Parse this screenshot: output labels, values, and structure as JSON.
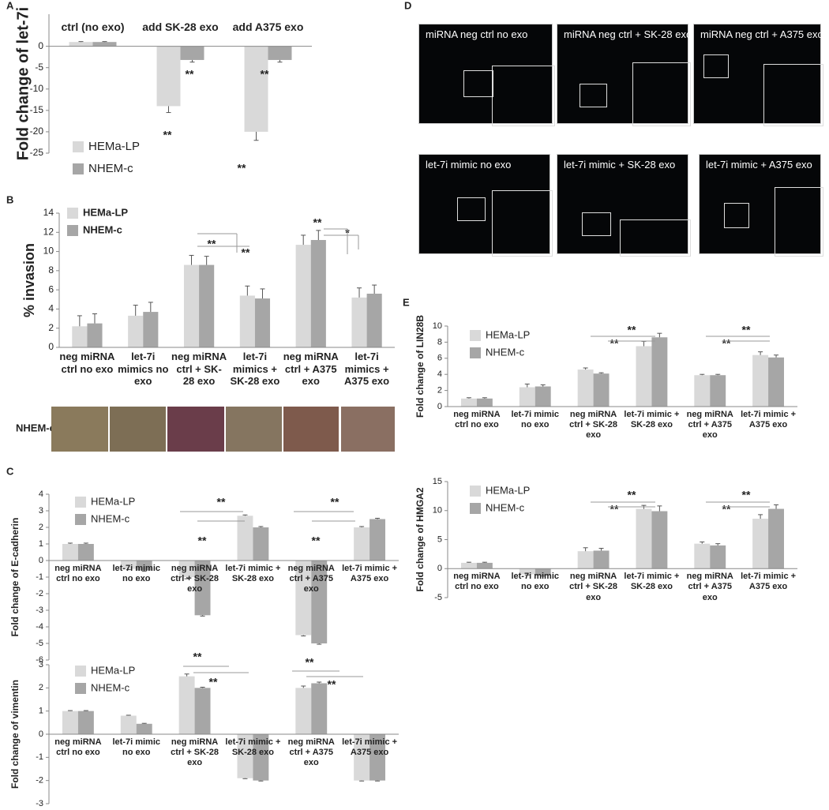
{
  "chart_data": [
    {
      "type": "bar",
      "panel": "A",
      "y_label": "Fold change of let-7i",
      "categories": [
        "ctrl (no exo)",
        "add SK-28 exo",
        "add A375 exo"
      ],
      "series": [
        {
          "name": "HEMa-LP",
          "color": "#d9d9d9",
          "values": [
            1,
            -14,
            -20
          ],
          "errors": [
            0.1,
            1.5,
            2
          ]
        },
        {
          "name": "NHEM-c",
          "color": "#a6a6a6",
          "values": [
            1,
            -3.2,
            -3.2
          ],
          "errors": [
            0.1,
            0.5,
            0.5
          ]
        }
      ],
      "ylim": [
        -25,
        7.5
      ],
      "yticks": [
        0,
        -5,
        -10,
        -15,
        -20,
        -25
      ],
      "legend": "lower left",
      "annotations": [
        "**",
        "**",
        "**",
        "**"
      ]
    },
    {
      "type": "bar",
      "panel": "B",
      "y_label": "% invasion",
      "categories": [
        "neg miRNA ctrl no exo",
        "let-7i mimics no exo",
        "neg miRNA ctrl + SK-28 exo",
        "let-7i mimics + SK-28 exo",
        "neg miRNA ctrl + A375 exo",
        "let-7i mimics + A375 exo"
      ],
      "series": [
        {
          "name": "HEMa-LP",
          "color": "#d9d9d9",
          "values": [
            2.2,
            3.3,
            8.6,
            5.4,
            10.7,
            5.2
          ],
          "errors": [
            1.1,
            1.1,
            1.0,
            1.0,
            1.0,
            1.0
          ]
        },
        {
          "name": "NHEM-c",
          "color": "#a6a6a6",
          "values": [
            2.5,
            3.7,
            8.6,
            5.1,
            11.2,
            5.6
          ],
          "errors": [
            1.0,
            1.0,
            0.9,
            1.0,
            1.0,
            0.9
          ]
        }
      ],
      "ylim": [
        0,
        14
      ],
      "yticks": [
        0,
        2,
        4,
        6,
        8,
        10,
        12,
        14
      ],
      "legend": "upper left",
      "annotations": [
        "**",
        "**",
        "**",
        "*"
      ],
      "image_row_label": "NHEM-c"
    },
    {
      "type": "bar",
      "panel": "C",
      "y_label": "Fold change of E-cadherin",
      "categories": [
        "neg miRNA ctrl no exo",
        "let-7i mimic no exo",
        "neg miRNA ctrl + SK-28 exo",
        "let-7i mimic + SK-28 exo",
        "neg miRNA ctrl + A375 exo",
        "let-7i mimic + A375 exo"
      ],
      "series": [
        {
          "name": "HEMa-LP",
          "color": "#d9d9d9",
          "values": [
            1,
            -0.5,
            -1,
            2.7,
            -4.5,
            2
          ],
          "errors": [
            0.05,
            0.05,
            0.1,
            0.05,
            0.05,
            0.05
          ]
        },
        {
          "name": "NHEM-c",
          "color": "#a6a6a6",
          "values": [
            1,
            -0.6,
            -3.3,
            2,
            -5,
            2.5
          ],
          "errors": [
            0.05,
            0.05,
            0.05,
            0.05,
            0.05,
            0.05
          ]
        }
      ],
      "ylim": [
        -6,
        4
      ],
      "yticks": [
        -6,
        -5,
        -4,
        -3,
        -2,
        -1,
        0,
        1,
        2,
        3,
        4
      ],
      "legend": "upper left",
      "annotations": [
        "**",
        "**",
        "**",
        "**"
      ]
    },
    {
      "type": "bar",
      "y_label": "Fold change of vimentin",
      "categories": [
        "neg miRNA ctrl no exo",
        "let-7i mimic no exo",
        "neg miRNA ctrl + SK-28 exo",
        "let-7i mimic + SK-28 exo",
        "neg miRNA ctrl + A375 exo",
        "let-7i mimic + A375 exo"
      ],
      "series": [
        {
          "name": "HEMa-LP",
          "color": "#d9d9d9",
          "values": [
            1,
            0.8,
            2.5,
            -1.9,
            2,
            -2
          ],
          "errors": [
            0.02,
            0.02,
            0.1,
            0.02,
            0.08,
            0.02
          ]
        },
        {
          "name": "NHEM-c",
          "color": "#a6a6a6",
          "values": [
            1,
            0.45,
            2,
            -2,
            2.2,
            -2
          ],
          "errors": [
            0.02,
            0.02,
            0.03,
            0.02,
            0.05,
            0.02
          ]
        }
      ],
      "ylim": [
        -3,
        3
      ],
      "yticks": [
        -3,
        -2,
        -1,
        0,
        1,
        2,
        3
      ],
      "legend": "upper left",
      "annotations": [
        "**",
        "**",
        "**",
        "**"
      ]
    },
    {
      "type": "bar",
      "panel": "E",
      "y_label": "Fold change of LIN28B",
      "categories": [
        "neg miRNA ctrl no exo",
        "let-7i mimic no exo",
        "neg miRNA ctrl + SK-28 exo",
        "let-7i mimic + SK-28 exo",
        "neg miRNA ctrl + A375 exo",
        "let-7i mimic + A375 exo"
      ],
      "series": [
        {
          "name": "HEMa-LP",
          "color": "#d9d9d9",
          "values": [
            1,
            2.4,
            4.6,
            7.5,
            3.9,
            6.4
          ],
          "errors": [
            0.1,
            0.4,
            0.2,
            0.6,
            0.1,
            0.4
          ]
        },
        {
          "name": "NHEM-c",
          "color": "#a6a6a6",
          "values": [
            1,
            2.5,
            4.1,
            8.6,
            3.9,
            6.1
          ],
          "errors": [
            0.1,
            0.2,
            0.1,
            0.5,
            0.1,
            0.3
          ]
        }
      ],
      "ylim": [
        0,
        10
      ],
      "yticks": [
        0,
        2,
        4,
        6,
        8,
        10
      ],
      "legend": "upper left",
      "annotations": [
        "**",
        "**",
        "**",
        "**"
      ]
    },
    {
      "type": "bar",
      "y_label": "Fold change of HMGA2",
      "categories": [
        "neg miRNA ctrl no exo",
        "let-7i mimic no exo",
        "neg miRNA ctrl + SK-28 exo",
        "let-7i mimic + SK-28 exo",
        "neg miRNA ctrl + A375 exo",
        "let-7i mimic + A375 exo"
      ],
      "series": [
        {
          "name": "HEMa-LP",
          "color": "#d9d9d9",
          "values": [
            1,
            -1,
            3,
            10.3,
            4.3,
            8.6
          ],
          "errors": [
            0.1,
            0.1,
            0.6,
            0.6,
            0.3,
            0.7
          ]
        },
        {
          "name": "NHEM-c",
          "color": "#a6a6a6",
          "values": [
            1,
            -1.2,
            3.1,
            9.9,
            4,
            10.3
          ],
          "errors": [
            0.1,
            0.1,
            0.4,
            0.9,
            0.3,
            0.7
          ]
        }
      ],
      "ylim": [
        -5,
        15
      ],
      "yticks": [
        -5,
        0,
        5,
        10,
        15
      ],
      "legend": "upper left",
      "annotations": [
        "**",
        "**",
        "**",
        "**"
      ]
    }
  ],
  "micrographs": {
    "panel": "D",
    "labels": [
      "miRNA neg ctrl no exo",
      "miRNA neg ctrl + SK-28 exo",
      "miRNA neg ctrl + A375 exo",
      "let-7i mimic no exo",
      "let-7i mimic + SK-28 exo",
      "let-7i mimic + A375 exo"
    ]
  }
}
